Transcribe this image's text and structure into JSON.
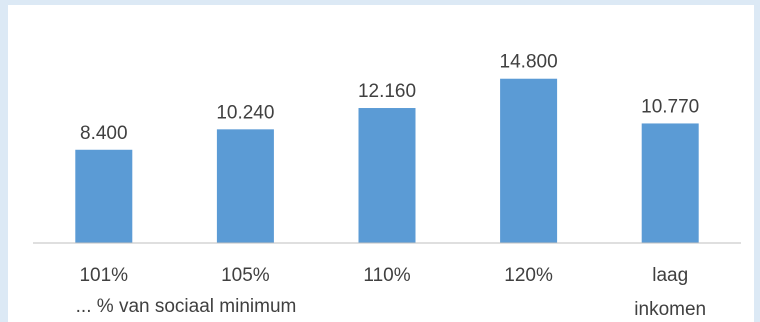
{
  "chart_data": {
    "type": "bar",
    "categories": [
      [
        "101%"
      ],
      [
        "105%"
      ],
      [
        "110%"
      ],
      [
        "120%"
      ],
      [
        "laag",
        "inkomen"
      ]
    ],
    "values": [
      8400,
      10240,
      12160,
      14800,
      10770
    ],
    "value_labels": [
      "8.400",
      "10.240",
      "12.160",
      "14.800",
      "10.770"
    ],
    "title": "",
    "xlabel": "... % van sociaal minimum",
    "ylabel": "",
    "ylim": [
      0,
      16000
    ],
    "grid": false,
    "bar_color": "#5b9bd5"
  }
}
